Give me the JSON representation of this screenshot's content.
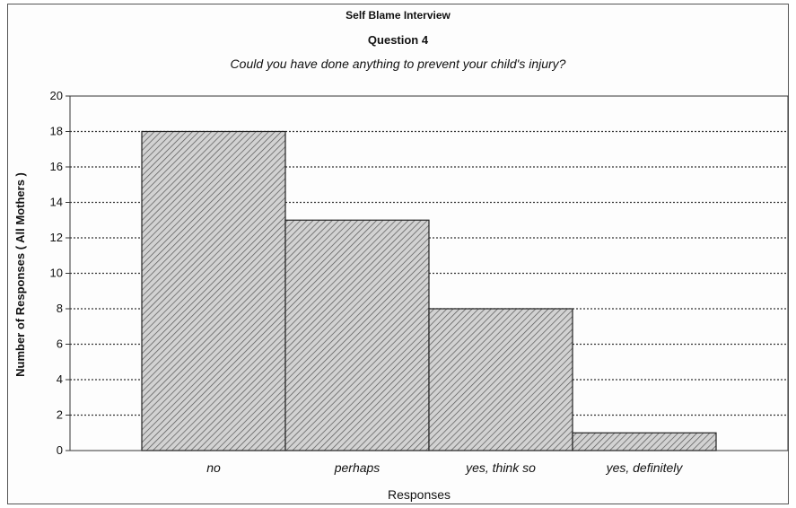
{
  "chart_data": {
    "type": "bar",
    "title": "Self Blame Interview",
    "subtitle": "Question 4",
    "question": "Could you have done anything to prevent your child's injury?",
    "categories": [
      "no",
      "perhaps",
      "yes, think so",
      "yes, definitely"
    ],
    "values": [
      18,
      13,
      8,
      1
    ],
    "xlabel": "Responses",
    "ylabel": "Number of Responses ( All Mothers )",
    "ylim": [
      0,
      20
    ],
    "yticks": [
      0,
      2,
      4,
      6,
      8,
      10,
      12,
      14,
      16,
      18,
      20
    ],
    "grid": true,
    "bar_fill": "hatched",
    "colors": {
      "bar": "#cfcfcf",
      "hatch": "#555555",
      "border": "#222222"
    }
  }
}
